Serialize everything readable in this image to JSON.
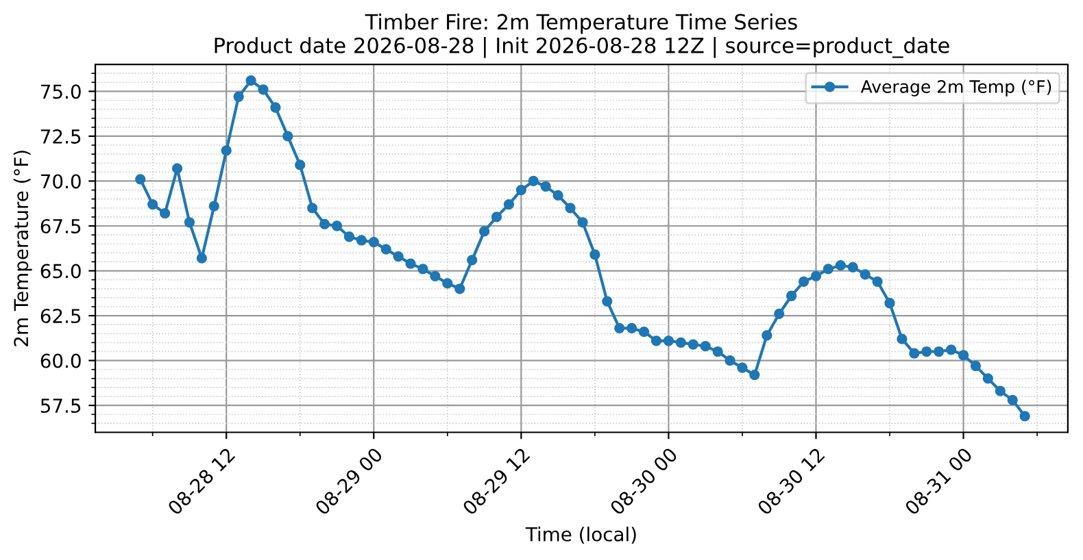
{
  "chart_data": {
    "type": "line",
    "title": "Timber Fire: 2m Temperature Time Series\nProduct date 2026-08-28 | Init 2026-08-28 12Z | source=product_date",
    "xlabel": "Time (local)",
    "ylabel": "2m Temperature (°F)",
    "x": [
      "2026-08-28T05:00",
      "2026-08-28T06:00",
      "2026-08-28T07:00",
      "2026-08-28T08:00",
      "2026-08-28T09:00",
      "2026-08-28T10:00",
      "2026-08-28T11:00",
      "2026-08-28T12:00",
      "2026-08-28T13:00",
      "2026-08-28T14:00",
      "2026-08-28T15:00",
      "2026-08-28T16:00",
      "2026-08-28T17:00",
      "2026-08-28T18:00",
      "2026-08-28T19:00",
      "2026-08-28T20:00",
      "2026-08-28T21:00",
      "2026-08-28T22:00",
      "2026-08-28T23:00",
      "2026-08-29T00:00",
      "2026-08-29T01:00",
      "2026-08-29T02:00",
      "2026-08-29T03:00",
      "2026-08-29T04:00",
      "2026-08-29T05:00",
      "2026-08-29T06:00",
      "2026-08-29T07:00",
      "2026-08-29T08:00",
      "2026-08-29T09:00",
      "2026-08-29T10:00",
      "2026-08-29T11:00",
      "2026-08-29T12:00",
      "2026-08-29T13:00",
      "2026-08-29T14:00",
      "2026-08-29T15:00",
      "2026-08-29T16:00",
      "2026-08-29T17:00",
      "2026-08-29T18:00",
      "2026-08-29T19:00",
      "2026-08-29T20:00",
      "2026-08-29T21:00",
      "2026-08-29T22:00",
      "2026-08-29T23:00",
      "2026-08-30T00:00",
      "2026-08-30T01:00",
      "2026-08-30T02:00",
      "2026-08-30T03:00",
      "2026-08-30T04:00",
      "2026-08-30T05:00",
      "2026-08-30T06:00",
      "2026-08-30T07:00",
      "2026-08-30T08:00",
      "2026-08-30T09:00",
      "2026-08-30T10:00",
      "2026-08-30T11:00",
      "2026-08-30T12:00",
      "2026-08-30T13:00",
      "2026-08-30T14:00",
      "2026-08-30T15:00",
      "2026-08-30T16:00",
      "2026-08-30T17:00",
      "2026-08-30T18:00",
      "2026-08-30T19:00",
      "2026-08-30T20:00",
      "2026-08-30T21:00",
      "2026-08-30T22:00",
      "2026-08-30T23:00",
      "2026-08-31T00:00",
      "2026-08-31T01:00",
      "2026-08-31T02:00",
      "2026-08-31T03:00",
      "2026-08-31T04:00",
      "2026-08-31T05:00"
    ],
    "series": [
      {
        "name": "Average 2m Temp (°F)",
        "color": "#1f77b4",
        "values": [
          70.1,
          68.7,
          68.2,
          70.7,
          67.7,
          65.7,
          68.6,
          71.7,
          74.7,
          75.6,
          75.1,
          74.1,
          72.5,
          70.9,
          68.5,
          67.6,
          67.5,
          66.9,
          66.7,
          66.6,
          66.2,
          65.8,
          65.4,
          65.1,
          64.7,
          64.3,
          64.0,
          65.6,
          67.2,
          68.0,
          68.7,
          69.5,
          70.0,
          69.7,
          69.2,
          68.5,
          67.7,
          65.9,
          63.3,
          61.8,
          61.8,
          61.6,
          61.1,
          61.1,
          61.0,
          60.9,
          60.8,
          60.5,
          60.0,
          59.6,
          59.2,
          61.4,
          62.6,
          63.6,
          64.4,
          64.7,
          65.1,
          65.3,
          65.2,
          64.8,
          64.4,
          63.2,
          61.2,
          60.4,
          60.5,
          60.5,
          60.6,
          60.3,
          59.7,
          59.0,
          58.3,
          57.8,
          56.9
        ]
      }
    ],
    "xlim": [
      "2026-08-28T01:20",
      "2026-08-31T08:30"
    ],
    "xticks": [
      {
        "value": "2026-08-28T06:00",
        "label": null
      },
      {
        "value": "2026-08-28T12:00",
        "label": "08-28 12"
      },
      {
        "value": "2026-08-28T18:00",
        "label": null
      },
      {
        "value": "2026-08-29T00:00",
        "label": "08-29 00"
      },
      {
        "value": "2026-08-29T06:00",
        "label": null
      },
      {
        "value": "2026-08-29T12:00",
        "label": "08-29 12"
      },
      {
        "value": "2026-08-29T18:00",
        "label": null
      },
      {
        "value": "2026-08-30T00:00",
        "label": "08-30 00"
      },
      {
        "value": "2026-08-30T06:00",
        "label": null
      },
      {
        "value": "2026-08-30T12:00",
        "label": "08-30 12"
      },
      {
        "value": "2026-08-30T18:00",
        "label": null
      },
      {
        "value": "2026-08-31T00:00",
        "label": "08-31 00"
      },
      {
        "value": "2026-08-31T06:00",
        "label": null
      }
    ],
    "ylim": [
      56.0,
      76.5
    ],
    "yticks": [
      {
        "value": 56.5,
        "label": null
      },
      {
        "value": 57.0,
        "label": null
      },
      {
        "value": 57.5,
        "label": "57.5"
      },
      {
        "value": 58.0,
        "label": null
      },
      {
        "value": 58.5,
        "label": null
      },
      {
        "value": 59.0,
        "label": null
      },
      {
        "value": 59.5,
        "label": null
      },
      {
        "value": 60.0,
        "label": "60.0"
      },
      {
        "value": 60.5,
        "label": null
      },
      {
        "value": 61.0,
        "label": null
      },
      {
        "value": 61.5,
        "label": null
      },
      {
        "value": 62.0,
        "label": null
      },
      {
        "value": 62.5,
        "label": "62.5"
      },
      {
        "value": 63.0,
        "label": null
      },
      {
        "value": 63.5,
        "label": null
      },
      {
        "value": 64.0,
        "label": null
      },
      {
        "value": 64.5,
        "label": null
      },
      {
        "value": 65.0,
        "label": "65.0"
      },
      {
        "value": 65.5,
        "label": null
      },
      {
        "value": 66.0,
        "label": null
      },
      {
        "value": 66.5,
        "label": null
      },
      {
        "value": 67.0,
        "label": null
      },
      {
        "value": 67.5,
        "label": "67.5"
      },
      {
        "value": 68.0,
        "label": null
      },
      {
        "value": 68.5,
        "label": null
      },
      {
        "value": 69.0,
        "label": null
      },
      {
        "value": 69.5,
        "label": null
      },
      {
        "value": 70.0,
        "label": "70.0"
      },
      {
        "value": 70.5,
        "label": null
      },
      {
        "value": 71.0,
        "label": null
      },
      {
        "value": 71.5,
        "label": null
      },
      {
        "value": 72.0,
        "label": null
      },
      {
        "value": 72.5,
        "label": "72.5"
      },
      {
        "value": 73.0,
        "label": null
      },
      {
        "value": 73.5,
        "label": null
      },
      {
        "value": 74.0,
        "label": null
      },
      {
        "value": 74.5,
        "label": null
      },
      {
        "value": 75.0,
        "label": "75.0"
      },
      {
        "value": 75.5,
        "label": null
      },
      {
        "value": 76.0,
        "label": null
      }
    ],
    "grid": true,
    "legend": "top right",
    "marker": "circle",
    "line_style": "solid"
  }
}
